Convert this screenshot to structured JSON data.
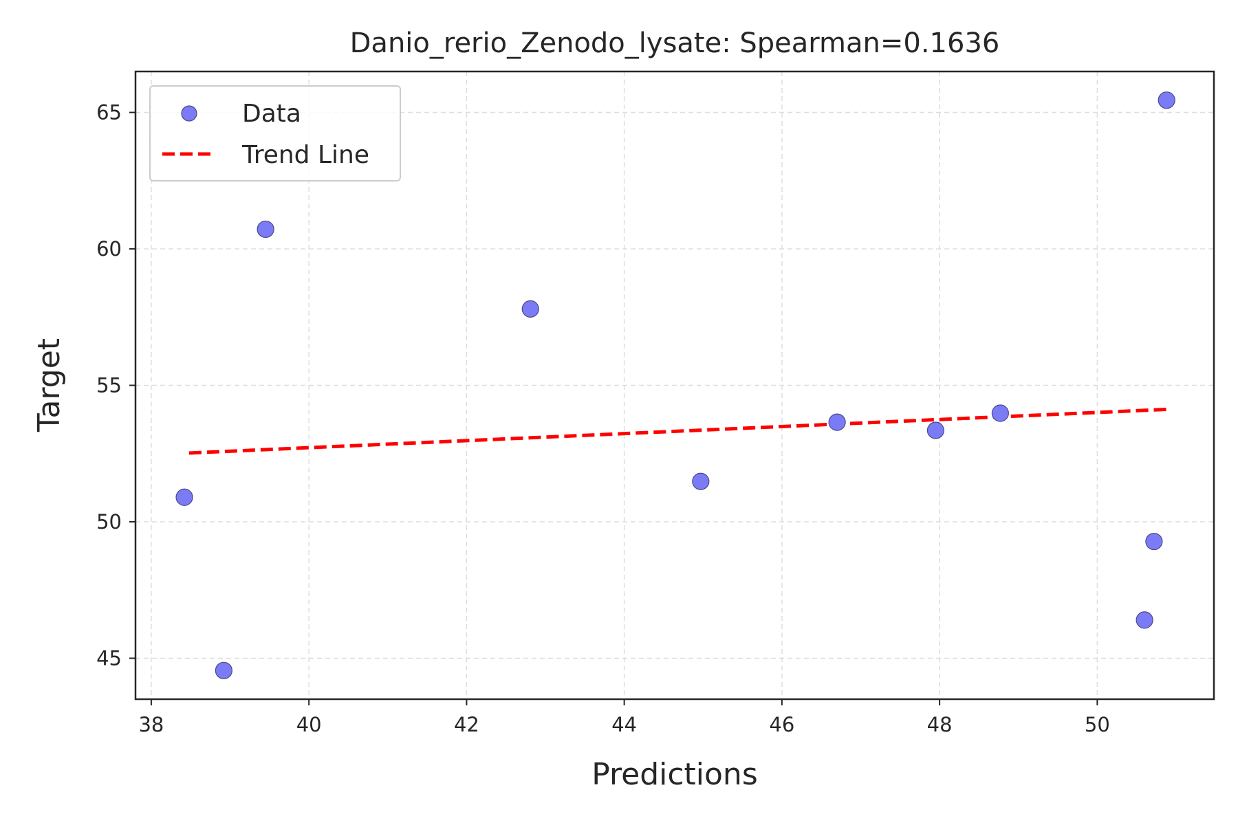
{
  "chart_data": {
    "type": "scatter",
    "title": "Danio_rerio_Zenodo_lysate: Spearman=0.1636",
    "xlabel": "Predictions",
    "ylabel": "Target",
    "xlim": [
      37.8,
      51.48
    ],
    "ylim": [
      43.5,
      66.5
    ],
    "xticks": [
      38,
      40,
      42,
      44,
      46,
      48,
      50
    ],
    "yticks": [
      45,
      50,
      55,
      60,
      65
    ],
    "grid": true,
    "legend_position": "top-left",
    "series": [
      {
        "name": "Data",
        "kind": "scatter",
        "color": "#7b7bf6",
        "edge_color": "#4a4a8a",
        "points": [
          {
            "x": 38.42,
            "y": 50.9
          },
          {
            "x": 38.92,
            "y": 44.55
          },
          {
            "x": 39.45,
            "y": 60.72
          },
          {
            "x": 42.81,
            "y": 57.8
          },
          {
            "x": 44.97,
            "y": 51.48
          },
          {
            "x": 46.7,
            "y": 53.65
          },
          {
            "x": 47.95,
            "y": 53.35
          },
          {
            "x": 48.77,
            "y": 53.98
          },
          {
            "x": 50.6,
            "y": 46.4
          },
          {
            "x": 50.72,
            "y": 49.28
          },
          {
            "x": 50.88,
            "y": 65.45
          }
        ]
      },
      {
        "name": "Trend Line",
        "kind": "line",
        "style": "dashed",
        "color": "#ff0000",
        "points": [
          {
            "x": 38.48,
            "y": 52.52
          },
          {
            "x": 50.88,
            "y": 54.12
          }
        ]
      }
    ]
  }
}
